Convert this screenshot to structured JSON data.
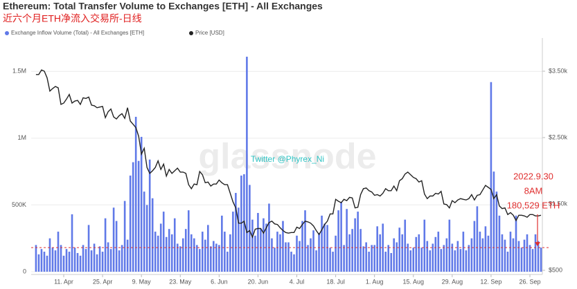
{
  "chart_data": {
    "type": "bar-line",
    "title": "Ethereum: Total Transfer Volume to Exchanges [ETH] - All Exchanges",
    "subtitle": "近六个月ETH净流入交易所-日线",
    "watermarks": [
      "glassnode",
      "Twitter @Phyrex_Ni"
    ],
    "categories": [
      null,
      null,
      null,
      null,
      null,
      null,
      null,
      null,
      null,
      null,
      "11. Apr",
      null,
      null,
      null,
      null,
      null,
      null,
      null,
      null,
      null,
      null,
      null,
      null,
      null,
      "25. Apr",
      null,
      null,
      null,
      null,
      null,
      null,
      null,
      null,
      null,
      null,
      null,
      null,
      null,
      "9. May",
      null,
      null,
      null,
      null,
      null,
      null,
      null,
      null,
      null,
      null,
      null,
      null,
      null,
      "23. May",
      null,
      null,
      null,
      null,
      null,
      null,
      null,
      null,
      null,
      null,
      null,
      null,
      null,
      "6. Jun",
      null,
      null,
      null,
      null,
      null,
      null,
      null,
      null,
      null,
      null,
      null,
      null,
      null,
      "20. Jun",
      null,
      null,
      null,
      null,
      null,
      null,
      null,
      null,
      null,
      null,
      null,
      null,
      null,
      "4. Jul",
      null,
      null,
      null,
      null,
      null,
      null,
      null,
      null,
      null,
      null,
      null,
      null,
      null,
      "18. Jul",
      null,
      null,
      null,
      null,
      null,
      null,
      null,
      null,
      null,
      null,
      null,
      null,
      null,
      "1. Aug",
      null,
      null,
      null,
      null,
      null,
      null,
      null,
      null,
      null,
      null,
      null,
      null,
      null,
      "15. Aug",
      null,
      null,
      null,
      null,
      null,
      null,
      null,
      null,
      null,
      null,
      null,
      null,
      null,
      "29. Aug",
      null,
      null,
      null,
      null,
      null,
      null,
      null,
      null,
      null,
      null,
      null,
      null,
      null,
      "12. Sep",
      null,
      null,
      null,
      null,
      null,
      null,
      null,
      null,
      null,
      null,
      null,
      null,
      null,
      "26. Sep",
      null,
      null,
      null,
      null
    ],
    "series": [
      {
        "name": "Exchange Inflow Volume (Total) - All Exchanges [ETH]",
        "color": "#6079e8",
        "values": [
          200000,
          130000,
          170000,
          150000,
          120000,
          250000,
          180000,
          160000,
          300000,
          200000,
          120000,
          170000,
          150000,
          430000,
          180000,
          140000,
          120000,
          200000,
          170000,
          350000,
          160000,
          210000,
          130000,
          190000,
          150000,
          400000,
          220000,
          170000,
          480000,
          380000,
          160000,
          200000,
          530000,
          240000,
          720000,
          820000,
          1160000,
          830000,
          1010000,
          600000,
          500000,
          840000,
          550000,
          300000,
          270000,
          360000,
          450000,
          260000,
          320000,
          280000,
          400000,
          210000,
          190000,
          250000,
          320000,
          460000,
          280000,
          250000,
          200000,
          170000,
          300000,
          240000,
          350000,
          190000,
          230000,
          210000,
          200000,
          420000,
          300000,
          150000,
          280000,
          450000,
          590000,
          480000,
          720000,
          730000,
          1610000,
          650000,
          390000,
          270000,
          440000,
          320000,
          400000,
          360000,
          510000,
          250000,
          180000,
          300000,
          280000,
          380000,
          220000,
          220000,
          150000,
          130000,
          270000,
          230000,
          380000,
          460000,
          200000,
          250000,
          310000,
          160000,
          290000,
          420000,
          360000,
          350000,
          180000,
          150000,
          270000,
          460000,
          520000,
          200000,
          470000,
          280000,
          320000,
          400000,
          450000,
          320000,
          190000,
          220000,
          150000,
          200000,
          200000,
          340000,
          280000,
          360000,
          150000,
          200000,
          140000,
          250000,
          220000,
          330000,
          280000,
          390000,
          210000,
          160000,
          180000,
          260000,
          280000,
          180000,
          390000,
          230000,
          160000,
          210000,
          260000,
          300000,
          170000,
          200000,
          250000,
          390000,
          210000,
          160000,
          230000,
          170000,
          300000,
          160000,
          200000,
          250000,
          380000,
          490000,
          300000,
          250000,
          340000,
          270000,
          1420000,
          750000,
          600000,
          420000,
          280000,
          240000,
          150000,
          300000,
          250000,
          420000,
          230000,
          180000,
          240000,
          280000,
          200000,
          170000,
          280000,
          230000,
          180529
        ]
      },
      {
        "name": "Price [USD]",
        "color": "#222222",
        "axis": "y2",
        "values": [
          3450,
          3450,
          3520,
          3500,
          3400,
          3200,
          3240,
          3270,
          3250,
          3000,
          3020,
          3080,
          3150,
          3020,
          3050,
          3060,
          3000,
          3100,
          3090,
          3110,
          2990,
          2980,
          2950,
          2960,
          2970,
          2800,
          2890,
          2930,
          2810,
          2780,
          2830,
          2860,
          2790,
          2950,
          2750,
          2700,
          2650,
          2520,
          2250,
          2340,
          2050,
          1960,
          2000,
          2050,
          2150,
          2020,
          2100,
          1920,
          2020,
          1960,
          2000,
          2040,
          1980,
          1980,
          1960,
          1790,
          1730,
          1800,
          1790,
          1990,
          1940,
          1820,
          1830,
          1770,
          1800,
          1800,
          1860,
          1820,
          1790,
          1790,
          1660,
          1530,
          1440,
          1210,
          1210,
          1240,
          1070,
          1100,
          1000,
          1120,
          1130,
          1130,
          1060,
          1140,
          1220,
          1240,
          1200,
          1190,
          1140,
          1100,
          1070,
          1060,
          1070,
          1070,
          1150,
          1130,
          1190,
          1240,
          1230,
          1210,
          1170,
          1100,
          1040,
          1110,
          1190,
          1240,
          1350,
          1350,
          1570,
          1540,
          1520,
          1570,
          1550,
          1600,
          1590,
          1440,
          1450,
          1640,
          1730,
          1740,
          1700,
          1680,
          1630,
          1640,
          1620,
          1660,
          1730,
          1700,
          1700,
          1770,
          1700,
          1850,
          1880,
          1950,
          1980,
          1940,
          1900,
          1880,
          1830,
          1850,
          1650,
          1580,
          1620,
          1620,
          1660,
          1650,
          1690,
          1500,
          1490,
          1440,
          1550,
          1520,
          1560,
          1580,
          1570,
          1560,
          1580,
          1640,
          1560,
          1630,
          1640,
          1710,
          1780,
          1750,
          1720,
          1580,
          1640,
          1470,
          1430,
          1440,
          1340,
          1370,
          1330,
          1250,
          1330,
          1330,
          1320,
          1300,
          1340,
          1340,
          1320,
          1320,
          1330
        ]
      }
    ],
    "ylim": [
      0,
      1750000
    ],
    "yticks": [
      0,
      {
        "value": 500000,
        "label": "500K"
      },
      {
        "value": 1000000,
        "label": "1M"
      },
      {
        "value": 1500000,
        "label": "1.5M"
      }
    ],
    "y2lim": [
      479,
      4000
    ],
    "y2ticks": [
      {
        "value": 500,
        "label": "$500"
      },
      {
        "value": 1500,
        "label": "$1.50k"
      },
      {
        "value": 2500,
        "label": "$2.50k"
      },
      {
        "value": 3500,
        "label": "$3.50k"
      }
    ],
    "grid": true,
    "reference_line": {
      "value": 180529,
      "color": "#e03030"
    },
    "annotations": [
      "2022.9.30",
      "8AM",
      {
        "value": 180529,
        "label": "180,529 ETH"
      }
    ]
  }
}
